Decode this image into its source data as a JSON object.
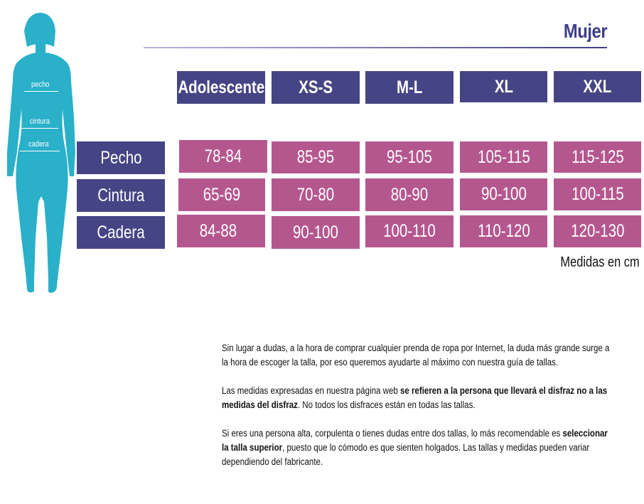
{
  "title": "Mujer",
  "figure": {
    "labels": [
      "pecho",
      "cintura",
      "cadera"
    ]
  },
  "columns": [
    "Adolescente",
    "XS-S",
    "M-L",
    "XL",
    "XXL"
  ],
  "rows": [
    {
      "label": "Pecho",
      "values": [
        "78-84",
        "85-95",
        "95-105",
        "105-115",
        "115-125"
      ]
    },
    {
      "label": "Cintura",
      "values": [
        "65-69",
        "70-80",
        "80-90",
        "90-100",
        "100-115"
      ]
    },
    {
      "label": "Cadera",
      "values": [
        "84-88",
        "90-100",
        "100-110",
        "110-120",
        "120-130"
      ]
    }
  ],
  "unit_note": "Medidas en cm",
  "paragraphs": [
    [
      {
        "text": "Sin lugar a dudas, a la hora de comprar cualquier prenda de ropa por Internet, la duda más grande surge a la hora de escoger la talla, por eso queremos ayudarte al máximo con nuestra guía de tallas.",
        "bold": false
      }
    ],
    [
      {
        "text": "Las medidas expresadas en nuestra página web ",
        "bold": false
      },
      {
        "text": "se refieren a la persona que llevará el disfraz no a las medidas del disfraz",
        "bold": true
      },
      {
        "text": ". No todos los disfraces están en todas las tallas.",
        "bold": false
      }
    ],
    [
      {
        "text": "Si eres una persona alta, corpulenta o tienes dudas entre dos tallas, lo más recomendable es ",
        "bold": false
      },
      {
        "text": "seleccionar la talla superior",
        "bold": true
      },
      {
        "text": ", puesto que lo cómodo es que sienten holgados. Las tallas y medidas pueden variar dependiendo del fabricante.",
        "bold": false
      }
    ]
  ],
  "colors": {
    "header": "#454585",
    "value": "#b5578f",
    "figure": "#2ab0c9",
    "title": "#3d3d8a"
  }
}
